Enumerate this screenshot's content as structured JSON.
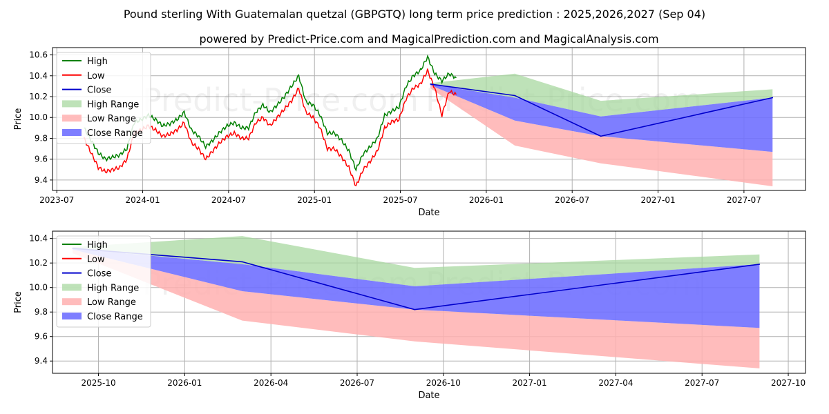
{
  "title": "Pound sterling With Guatemalan quetzal (GBPGTQ) long term price prediction : 2025,2026,2027 (Sep 04)",
  "subtitle": "powered by Predict-Price.com and MagicalPrediction.com and MagicalAnalysis.com",
  "watermark": "Predict-Price.com",
  "colors": {
    "high": "#008000",
    "low": "#ff0000",
    "close": "#0000cc",
    "high_range": "#a8d8a0",
    "low_range": "#ffb0b0",
    "close_range": "#7070ff",
    "grid": "#b0b0b0"
  },
  "legend": [
    "High",
    "Low",
    "Close",
    "High Range",
    "Low Range",
    "Close Range"
  ],
  "chart_data": [
    {
      "type": "line",
      "panel": "overview",
      "xlabel": "Date",
      "ylabel": "Price",
      "x_tick_labels": [
        "2023-07",
        "2024-01",
        "2024-07",
        "2025-01",
        "2025-07",
        "2026-01",
        "2026-07",
        "2027-01",
        "2027-07"
      ],
      "x_tick_months": [
        0,
        6,
        12,
        18,
        24,
        30,
        36,
        42,
        48
      ],
      "xlim_months": [
        -0.3,
        52.3
      ],
      "y_tick_labels": [
        "9.4",
        "9.6",
        "9.8",
        "10.0",
        "10.2",
        "10.4",
        "10.6"
      ],
      "ylim": [
        9.3,
        10.67
      ],
      "history_month_offset_from_2023_07": 1.9,
      "history": {
        "month_step": 0.5,
        "high": [
          9.9,
          9.78,
          9.66,
          9.6,
          9.62,
          9.64,
          9.7,
          9.95,
          9.98,
          10.02,
          9.98,
          9.92,
          9.94,
          9.98,
          10.05,
          9.88,
          9.82,
          9.72,
          9.78,
          9.86,
          9.92,
          9.95,
          9.9,
          9.9,
          10.05,
          10.12,
          10.05,
          10.12,
          10.2,
          10.3,
          10.4,
          10.15,
          10.12,
          10.02,
          9.85,
          9.85,
          9.78,
          9.68,
          9.5,
          9.65,
          9.72,
          9.8,
          10.02,
          10.06,
          10.1,
          10.3,
          10.4,
          10.45,
          10.58,
          10.42,
          10.35,
          10.42,
          10.38
        ],
        "low": [
          9.8,
          9.66,
          9.52,
          9.48,
          9.5,
          9.52,
          9.6,
          9.85,
          9.88,
          9.92,
          9.88,
          9.82,
          9.84,
          9.88,
          9.95,
          9.76,
          9.7,
          9.6,
          9.68,
          9.76,
          9.82,
          9.85,
          9.8,
          9.8,
          9.95,
          10.0,
          9.92,
          10.0,
          10.08,
          10.16,
          10.28,
          10.05,
          10.0,
          9.9,
          9.7,
          9.7,
          9.62,
          9.52,
          9.34,
          9.5,
          9.58,
          9.68,
          9.9,
          9.96,
          9.98,
          10.18,
          10.28,
          10.32,
          10.45,
          10.28,
          10.02,
          10.25,
          10.22
        ]
      },
      "forecast": {
        "dates": [
          "2025-09",
          "2026-03",
          "2026-09",
          "2027-09"
        ],
        "months": [
          26.1,
          32.0,
          38.0,
          50.0
        ],
        "close": [
          10.32,
          10.21,
          9.82,
          10.19
        ],
        "high_range_upper": [
          10.33,
          10.42,
          10.16,
          10.27
        ],
        "close_range_upper": [
          10.32,
          10.19,
          10.01,
          10.19
        ],
        "close_range_lower": [
          10.31,
          9.97,
          9.82,
          9.67
        ],
        "low_range_lower": [
          10.28,
          9.73,
          9.56,
          9.34
        ]
      }
    },
    {
      "type": "area",
      "panel": "forecast-zoom",
      "xlabel": "Date",
      "ylabel": "Price",
      "x_tick_labels": [
        "2025-10",
        "2026-01",
        "2026-04",
        "2026-07",
        "2026-10",
        "2027-01",
        "2027-04",
        "2027-07",
        "2027-10"
      ],
      "x_tick_months": [
        27,
        30,
        33,
        36,
        39,
        42,
        45,
        48,
        51
      ],
      "xlim_months": [
        25.4,
        51.6
      ],
      "y_tick_labels": [
        "9.4",
        "9.6",
        "9.8",
        "10.0",
        "10.2",
        "10.4"
      ],
      "ylim": [
        9.3,
        10.46
      ],
      "series": [
        {
          "name": "Close",
          "months": [
            26.1,
            32.0,
            38.0,
            50.0
          ],
          "values": [
            10.32,
            10.21,
            9.82,
            10.19
          ]
        },
        {
          "name": "High Range",
          "months": [
            26.1,
            32.0,
            38.0,
            50.0
          ],
          "upper": [
            10.33,
            10.42,
            10.16,
            10.27
          ],
          "lower": [
            10.32,
            10.19,
            10.01,
            10.19
          ]
        },
        {
          "name": "Close Range",
          "months": [
            26.1,
            32.0,
            38.0,
            50.0
          ],
          "upper": [
            10.32,
            10.19,
            10.01,
            10.19
          ],
          "lower": [
            10.31,
            9.97,
            9.82,
            9.67
          ]
        },
        {
          "name": "Low Range",
          "months": [
            26.1,
            32.0,
            38.0,
            50.0
          ],
          "upper": [
            10.31,
            9.97,
            9.82,
            9.67
          ],
          "lower": [
            10.28,
            9.73,
            9.56,
            9.34
          ]
        }
      ]
    }
  ]
}
